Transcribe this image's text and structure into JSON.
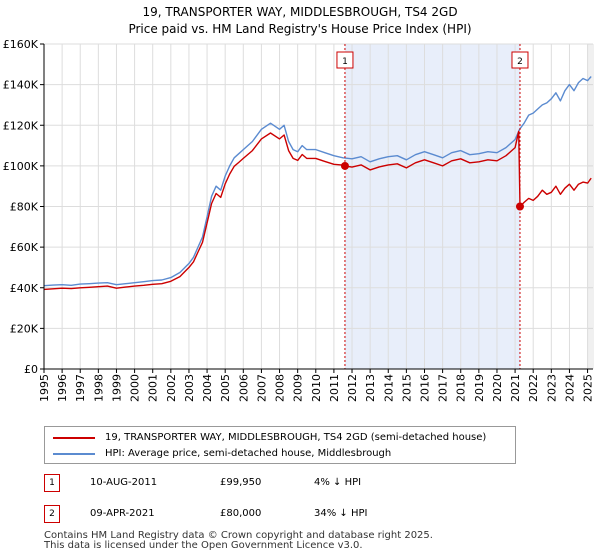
{
  "chart_data": {
    "type": "line",
    "title": "19, TRANSPORTER WAY, MIDDLESBROUGH, TS4 2GD",
    "subtitle": "Price paid vs. HM Land Registry's House Price Index (HPI)",
    "xlim": [
      1995,
      2025.3
    ],
    "ylim": [
      0,
      160000
    ],
    "yticks": [
      0,
      20000,
      40000,
      60000,
      80000,
      100000,
      120000,
      140000,
      160000
    ],
    "ytick_labels": [
      "£0",
      "£20K",
      "£40K",
      "£60K",
      "£80K",
      "£100K",
      "£120K",
      "£140K",
      "£160K"
    ],
    "xticks": [
      1995,
      1996,
      1997,
      1998,
      1999,
      2000,
      2001,
      2002,
      2003,
      2004,
      2005,
      2006,
      2007,
      2008,
      2009,
      2010,
      2011,
      2012,
      2013,
      2014,
      2015,
      2016,
      2017,
      2018,
      2019,
      2020,
      2021,
      2022,
      2023,
      2024,
      2025
    ],
    "xtick_labels": [
      "1995",
      "1996",
      "1997",
      "1998",
      "1999",
      "2000",
      "2001",
      "2002",
      "2003",
      "2004",
      "2005",
      "2006",
      "2007",
      "2008",
      "2009",
      "2010",
      "2011",
      "2012",
      "2013",
      "2014",
      "2015",
      "2016",
      "2017",
      "2018",
      "2019",
      "2020",
      "2021",
      "2022",
      "2023",
      "2024",
      "2025"
    ],
    "shaded_region": [
      2011.61,
      2021.27
    ],
    "series": [
      {
        "name": "HPI: Average price, semi-detached house, Middlesbrough",
        "color": "#5b8bd0",
        "x": [
          1995.0,
          1995.5,
          1996.0,
          1996.5,
          1997.0,
          1997.5,
          1998.0,
          1998.5,
          1999.0,
          1999.5,
          2000.0,
          2000.5,
          2001.0,
          2001.5,
          2002.0,
          2002.5,
          2003.0,
          2003.25,
          2003.5,
          2003.75,
          2004.0,
          2004.25,
          2004.5,
          2004.75,
          2005.0,
          2005.25,
          2005.5,
          2005.75,
          2006.0,
          2006.5,
          2007.0,
          2007.5,
          2008.0,
          2008.25,
          2008.5,
          2008.75,
          2009.0,
          2009.25,
          2009.5,
          2010.0,
          2010.5,
          2011.0,
          2011.5,
          2012.0,
          2012.5,
          2013.0,
          2013.5,
          2014.0,
          2014.5,
          2015.0,
          2015.5,
          2016.0,
          2016.5,
          2017.0,
          2017.5,
          2018.0,
          2018.5,
          2019.0,
          2019.5,
          2020.0,
          2020.5,
          2021.0,
          2021.25,
          2021.5,
          2021.75,
          2022.0,
          2022.25,
          2022.5,
          2022.75,
          2023.0,
          2023.25,
          2023.5,
          2023.75,
          2024.0,
          2024.25,
          2024.5,
          2024.75,
          2025.0,
          2025.2
        ],
        "values": [
          41000,
          41300,
          41500,
          41200,
          41800,
          42000,
          42300,
          42500,
          41500,
          42000,
          42500,
          43000,
          43500,
          43800,
          45000,
          47500,
          52000,
          55000,
          60000,
          65000,
          75000,
          85000,
          90000,
          88000,
          95000,
          100000,
          104000,
          106000,
          108000,
          112000,
          118000,
          121000,
          118000,
          120000,
          112000,
          108000,
          107000,
          110000,
          108000,
          108000,
          106500,
          105000,
          104000,
          103500,
          104500,
          102000,
          103500,
          104500,
          105000,
          103000,
          105500,
          107000,
          105500,
          104000,
          106500,
          107500,
          105500,
          106000,
          107000,
          106500,
          109000,
          113000,
          118000,
          121000,
          125000,
          126000,
          128000,
          130000,
          131000,
          133000,
          136000,
          132000,
          137000,
          140000,
          137000,
          141000,
          143000,
          142000,
          144000
        ]
      },
      {
        "name": "19, TRANSPORTER WAY, MIDDLESBROUGH, TS4 2GD (semi-detached house)",
        "color": "#cc0000",
        "x": [
          1995.0,
          1995.5,
          1996.0,
          1996.5,
          1997.0,
          1997.5,
          1998.0,
          1998.5,
          1999.0,
          1999.5,
          2000.0,
          2000.5,
          2001.0,
          2001.5,
          2002.0,
          2002.5,
          2003.0,
          2003.25,
          2003.5,
          2003.75,
          2004.0,
          2004.25,
          2004.5,
          2004.75,
          2005.0,
          2005.25,
          2005.5,
          2005.75,
          2006.0,
          2006.5,
          2007.0,
          2007.5,
          2008.0,
          2008.25,
          2008.5,
          2008.75,
          2009.0,
          2009.25,
          2009.5,
          2010.0,
          2010.5,
          2011.0,
          2011.4,
          2011.61,
          2012.0,
          2012.5,
          2013.0,
          2013.5,
          2014.0,
          2014.5,
          2015.0,
          2015.5,
          2016.0,
          2016.5,
          2017.0,
          2017.5,
          2018.0,
          2018.5,
          2019.0,
          2019.5,
          2020.0,
          2020.5,
          2021.0,
          2021.2,
          2021.27,
          2021.5,
          2021.75,
          2022.0,
          2022.25,
          2022.5,
          2022.75,
          2023.0,
          2023.25,
          2023.5,
          2023.75,
          2024.0,
          2024.25,
          2024.5,
          2024.75,
          2025.0,
          2025.2
        ],
        "values": [
          39200,
          39500,
          39800,
          39600,
          40000,
          40200,
          40500,
          40800,
          39800,
          40300,
          40800,
          41200,
          41700,
          42000,
          43200,
          45500,
          50000,
          52800,
          57600,
          62400,
          72000,
          81500,
          86400,
          84500,
          91200,
          96000,
          99800,
          101700,
          103700,
          107500,
          113300,
          116200,
          113300,
          115200,
          107500,
          103700,
          102700,
          105600,
          103700,
          103700,
          102200,
          100800,
          100500,
          99950,
          99400,
          100500,
          98000,
          99500,
          100500,
          101000,
          99000,
          101500,
          103000,
          101500,
          100000,
          102500,
          103500,
          101500,
          102000,
          103000,
          102500,
          105000,
          109000,
          117000,
          80000,
          82000,
          84000,
          83000,
          85000,
          88000,
          86000,
          87000,
          90000,
          86000,
          89000,
          91000,
          88000,
          91000,
          92000,
          91500,
          94000
        ]
      }
    ],
    "sales": [
      {
        "label": "1",
        "date": "10-AUG-2011",
        "price": "£99,950",
        "hpi_diff": "4% ↓ HPI",
        "x": 2011.61,
        "value": 99950
      },
      {
        "label": "2",
        "date": "09-APR-2021",
        "price": "£80,000",
        "hpi_diff": "34% ↓ HPI",
        "x": 2021.27,
        "value": 80000
      }
    ],
    "legend": {
      "property": "19, TRANSPORTER WAY, MIDDLESBROUGH, TS4 2GD (semi-detached house)",
      "hpi": "HPI: Average price, semi-detached house, Middlesbrough"
    },
    "footer_line1": "Contains HM Land Registry data © Crown copyright and database right 2025.",
    "footer_line2": "This data is licensed under the Open Government Licence v3.0."
  }
}
